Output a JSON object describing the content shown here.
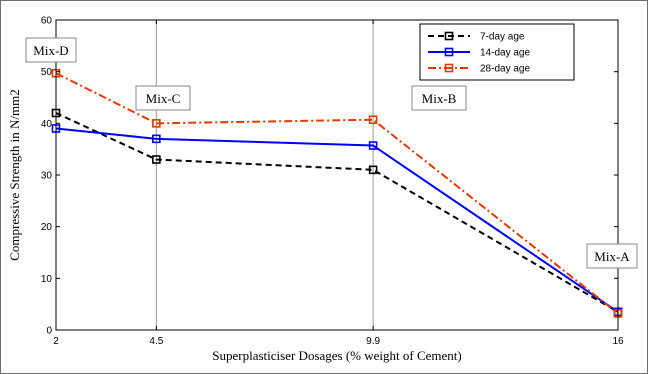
{
  "chart_data": {
    "type": "line",
    "title": "",
    "xlabel": "Superplasticiser Dosages (% weight of Cement)",
    "ylabel": "Compressive Strength in N/mm2",
    "x": [
      2,
      4.5,
      9.9,
      16
    ],
    "x_tick_labels": [
      "2",
      "4.5",
      "9.9",
      "16"
    ],
    "ylim": [
      0,
      60
    ],
    "y_ticks": [
      0,
      10,
      20,
      30,
      40,
      50,
      60
    ],
    "y_tick_labels": [
      "0",
      "10",
      "20",
      "30",
      "40",
      "50",
      "60"
    ],
    "vertical_gridlines_at": [
      4.5,
      9.9
    ],
    "legend_position": "top-right",
    "series": [
      {
        "name": "7-day age",
        "values": [
          42,
          33,
          31,
          3.5
        ],
        "color": "#000000",
        "dash": "dashed"
      },
      {
        "name": "14-day age",
        "values": [
          39,
          37,
          35.7,
          3.5
        ],
        "color": "#0000ff",
        "dash": "solid"
      },
      {
        "name": "28-day age",
        "values": [
          49.7,
          40,
          40.7,
          3.2
        ],
        "color": "#e03c00",
        "dash": "dashdot"
      }
    ],
    "annotations": [
      {
        "text": "Mix-D",
        "x": 2
      },
      {
        "text": "Mix-C",
        "x": 4.5
      },
      {
        "text": "Mix-B",
        "x": 9.9
      },
      {
        "text": "Mix-A",
        "x": 16
      }
    ]
  }
}
